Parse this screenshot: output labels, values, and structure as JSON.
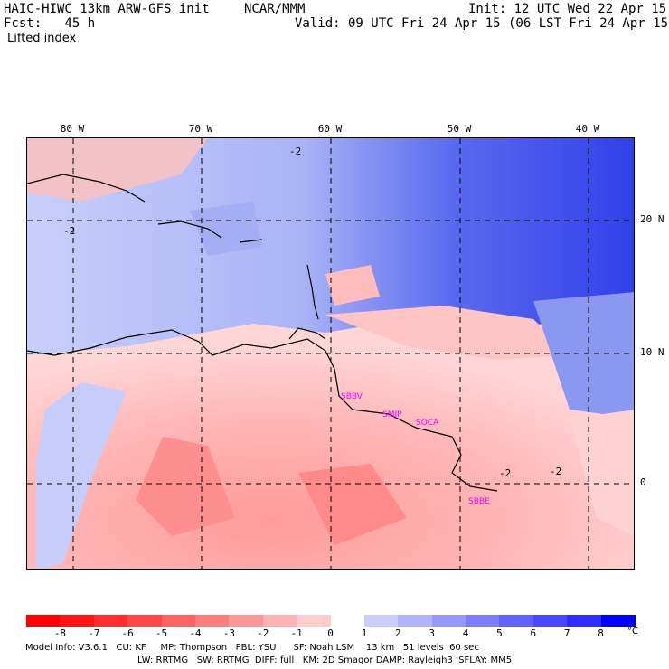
{
  "header": {
    "title_left": "HAIC-HIWC 13km ARW-GFS init",
    "title_center": "NCAR/MMM",
    "init": "Init: 12 UTC Wed 22 Apr 15",
    "fcst": "Fcst:   45 h",
    "valid": "Valid: 09 UTC Fri 24 Apr 15 (06 LST Fri 24 Apr 15)",
    "field": "Lifted index"
  },
  "map": {
    "lon_labels": [
      "80 W",
      "70 W",
      "60 W",
      "50 W",
      "40 W"
    ],
    "lat_labels": [
      "20 N",
      "10 N",
      "0"
    ],
    "stations": [
      "SBBV",
      "SMJP",
      "SOCA",
      "SBBE"
    ],
    "contour_labels": [
      "-2",
      "-2",
      "-2",
      "-2"
    ],
    "colors": {
      "negative": "#ff3a3a",
      "positive": "#2c2cff",
      "land_line": "#000000",
      "station": "#ff00ff"
    }
  },
  "colorbar": {
    "ticks": [
      "-8",
      "-7",
      "-6",
      "-5",
      "-4",
      "-3",
      "-2",
      "-1",
      "0",
      "1",
      "2",
      "3",
      "4",
      "5",
      "6",
      "7",
      "8"
    ],
    "unit": "°C",
    "colors": [
      "#ff1414",
      "#ff2d2d",
      "#ff4848",
      "#ff6262",
      "#ff7d7d",
      "#ff9797",
      "#ffb2b2",
      "#ffcccc",
      "#ffffff",
      "#ccccff",
      "#b2b2ff",
      "#9797ff",
      "#7d7dff",
      "#6262ff",
      "#4848ff",
      "#2d2dff",
      "#1414ff"
    ]
  },
  "footer": {
    "line1": "Model Info: V3.6.1   CU: KF     MP: Thompson   PBL: YSU      SF: Noah LSM    13 km   51 levels  60 sec",
    "line2": "LW: RRTMG   SW: RRTMG  DIFF: full   KM: 2D Smagor DAMP: Rayleigh3  SFLAY: MM5"
  }
}
